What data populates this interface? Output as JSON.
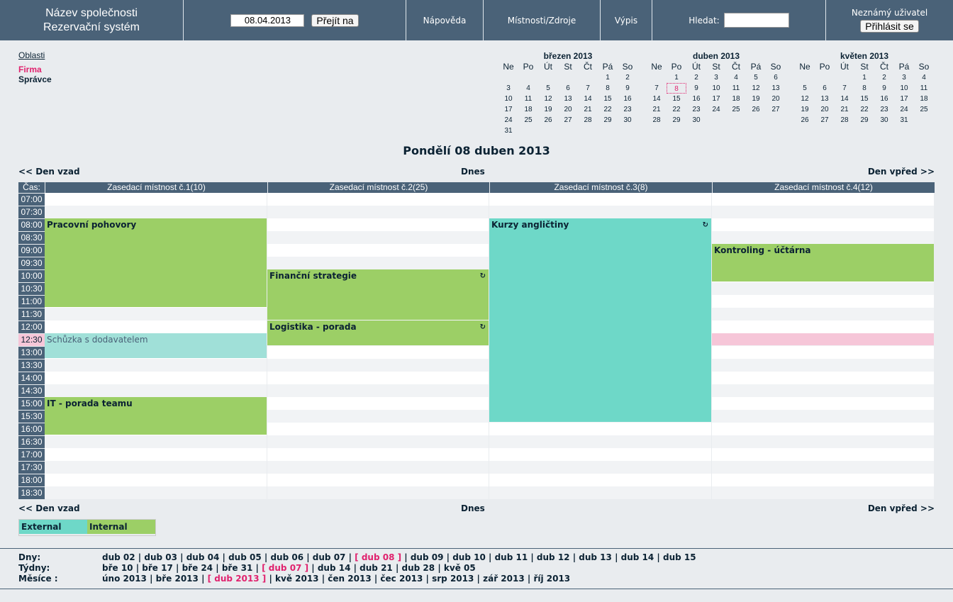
{
  "header": {
    "company_line1": "Název společnosti",
    "company_line2": "Rezervační systém",
    "date_value": "08.04.2013",
    "goto_label": "Přejít na",
    "nav_help": "Nápověda",
    "nav_rooms": "Místnosti/Zdroje",
    "nav_report": "Výpis",
    "search_label": "Hledat:",
    "search_value": "",
    "user_label": "Neznámý uživatel",
    "login_label": "Přihlásit se"
  },
  "areas": {
    "title": "Oblasti",
    "items": [
      "Firma",
      "Správce"
    ]
  },
  "minicals": [
    {
      "title": "březen 2013",
      "weekdays": [
        "Ne",
        "Po",
        "Út",
        "St",
        "Čt",
        "Pá",
        "So"
      ],
      "days": [
        "",
        "",
        "",
        "",
        "",
        "1",
        "2",
        "3",
        "4",
        "5",
        "6",
        "7",
        "8",
        "9",
        "10",
        "11",
        "12",
        "13",
        "14",
        "15",
        "16",
        "17",
        "18",
        "19",
        "20",
        "21",
        "22",
        "23",
        "24",
        "25",
        "26",
        "27",
        "28",
        "29",
        "30",
        "31"
      ]
    },
    {
      "title": "duben 2013",
      "weekdays": [
        "Ne",
        "Po",
        "Út",
        "St",
        "Čt",
        "Pá",
        "So"
      ],
      "days": [
        "",
        "1",
        "2",
        "3",
        "4",
        "5",
        "6",
        "7",
        "8",
        "9",
        "10",
        "11",
        "12",
        "13",
        "14",
        "15",
        "16",
        "17",
        "18",
        "19",
        "20",
        "21",
        "22",
        "23",
        "24",
        "25",
        "26",
        "27",
        "28",
        "29",
        "30"
      ],
      "today": "8"
    },
    {
      "title": "květen 2013",
      "weekdays": [
        "Ne",
        "Po",
        "Út",
        "St",
        "Čt",
        "Pá",
        "So"
      ],
      "days": [
        "",
        "",
        "",
        "1",
        "2",
        "3",
        "4",
        "5",
        "6",
        "7",
        "8",
        "9",
        "10",
        "11",
        "12",
        "13",
        "14",
        "15",
        "16",
        "17",
        "18",
        "19",
        "20",
        "21",
        "22",
        "23",
        "24",
        "25",
        "26",
        "27",
        "28",
        "29",
        "30",
        "31"
      ]
    }
  ],
  "day_title": "Pondělí 08 duben 2013",
  "nav": {
    "prev": "<< Den vzad",
    "today": "Dnes",
    "next": "Den vpřed >>"
  },
  "grid": {
    "time_header": "Čas:",
    "rooms": [
      "Zasedací místnost č.1(10)",
      "Zasedací místnost č.2(25)",
      "Zasedací místnost č.3(8)",
      "Zasedací místnost č.4(12)"
    ],
    "times": [
      "07:00",
      "07:30",
      "08:00",
      "08:30",
      "09:00",
      "09:30",
      "10:00",
      "10:30",
      "11:00",
      "11:30",
      "12:00",
      "12:30",
      "13:00",
      "13:30",
      "14:00",
      "14:30",
      "15:00",
      "15:30",
      "16:00",
      "16:30",
      "17:00",
      "17:30",
      "18:00",
      "18:30"
    ],
    "current_time": "12:30",
    "bookings": [
      {
        "room": 0,
        "start": 2,
        "slots": 7,
        "title": "Pracovní pohovory",
        "type": "int",
        "recurring": false
      },
      {
        "room": 0,
        "start": 11,
        "slots": 2,
        "title": "Schůzka s dodavatelem",
        "type": "lightext",
        "recurring": false
      },
      {
        "room": 0,
        "start": 16,
        "slots": 3,
        "title": "IT - porada teamu",
        "type": "int",
        "recurring": false
      },
      {
        "room": 1,
        "start": 6,
        "slots": 4,
        "title": "Finanční strategie",
        "type": "int",
        "recurring": true
      },
      {
        "room": 1,
        "start": 10,
        "slots": 2,
        "title": "Logistika - porada",
        "type": "int",
        "recurring": true
      },
      {
        "room": 2,
        "start": 2,
        "slots": 16,
        "title": "Kurzy angličtiny",
        "type": "ext",
        "recurring": true
      },
      {
        "room": 3,
        "start": 4,
        "slots": 3,
        "title": "Kontroling - účtárna",
        "type": "int",
        "recurring": false
      },
      {
        "room": 3,
        "start": 11,
        "slots": 1,
        "title": "",
        "type": "pinkbar",
        "recurring": false
      }
    ]
  },
  "legend": {
    "external": "External",
    "internal": "Internal"
  },
  "footer": {
    "days_label": "Dny:",
    "weeks_label": "Týdny:",
    "months_label": "Měsíce :",
    "days": [
      "dub 02",
      "dub 03",
      "dub 04",
      "dub 05",
      "dub 06",
      "dub 07",
      "[ dub 08 ]",
      "dub 09",
      "dub 10",
      "dub 11",
      "dub 12",
      "dub 13",
      "dub 14",
      "dub 15"
    ],
    "days_current": 6,
    "weeks": [
      "bře 10",
      "bře 17",
      "bře 24",
      "bře 31",
      "[ dub 07 ]",
      "dub 14",
      "dub 21",
      "dub 28",
      "kvě 05"
    ],
    "weeks_current": 4,
    "months": [
      "úno 2013",
      "bře 2013",
      "[ dub 2013 ]",
      "kvě 2013",
      "čen 2013",
      "čec 2013",
      "srp 2013",
      "zář 2013",
      "říj 2013"
    ],
    "months_current": 2
  }
}
